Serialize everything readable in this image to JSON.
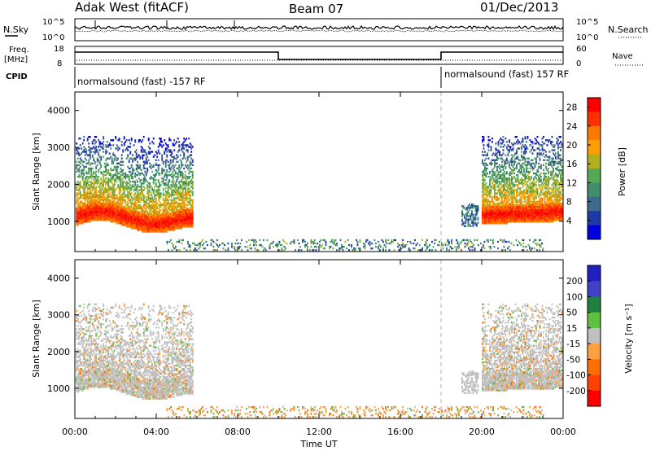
{
  "header": {
    "station": "Adak West (fitACF)",
    "beam": "Beam 07",
    "date": "01/Dec/2013"
  },
  "left_labels": {
    "nsky": "N.Sky",
    "freq": "Freq.",
    "freq_unit": "[MHz]",
    "cpid": "CPID"
  },
  "right_labels": {
    "nsearch": "N.Search",
    "nave": "Nave"
  },
  "noise_panel": {
    "left_ticks": [
      "10^5",
      "10^0"
    ],
    "right_ticks": [
      "10^5",
      "10^0"
    ]
  },
  "freq_panel": {
    "left_ticks": [
      "18",
      "8"
    ],
    "right_ticks": [
      "60",
      "0"
    ]
  },
  "cpid_panel": {
    "segments": [
      {
        "label": "normalsound (fast) -157 RF",
        "start_hour": 0
      },
      {
        "label": "normalsound (fast) 157 RF",
        "start_hour": 18
      }
    ]
  },
  "colors": {
    "background": "#ffffff",
    "axis": "#000000",
    "ground_scatter": "#c0c0c0",
    "boundary": "#b0b0b0"
  },
  "chart_data": [
    {
      "type": "heatmap",
      "name": "power",
      "xlabel": "",
      "ylabel": "Slant Range [km]",
      "x_ticks": [
        "00:00",
        "04:00",
        "08:00",
        "12:00",
        "16:00",
        "20:00",
        "00:00"
      ],
      "x_tick_hours": [
        0,
        4,
        8,
        12,
        16,
        20,
        24
      ],
      "y_ticks": [
        1000,
        2000,
        3000,
        4000
      ],
      "xlim": [
        0,
        24
      ],
      "ylim": [
        180,
        4500
      ],
      "colorbar": {
        "label": "Power [dB]",
        "ticks": [
          "4",
          "8",
          "12",
          "16",
          "20",
          "24",
          "28"
        ],
        "range": [
          0,
          30
        ],
        "colors": [
          "#0000e0",
          "#1d3aa8",
          "#3f6a8e",
          "#3f8f6a",
          "#55a855",
          "#b0b020",
          "#ffa000",
          "#ff7800",
          "#ff3000",
          "#ff0000"
        ]
      },
      "regions": [
        {
          "hour_start": 0.0,
          "hour_end": 5.8,
          "range_low": 700,
          "range_high": 3300,
          "value_peak": 28,
          "value_edge": 4
        },
        {
          "hour_start": 20.0,
          "hour_end": 24.0,
          "range_low": 700,
          "range_high": 3300,
          "value_peak": 28,
          "value_edge": 4
        },
        {
          "hour_start": 19.0,
          "hour_end": 20.0,
          "range_low": 800,
          "range_high": 1500,
          "value_peak": 8,
          "value_edge": 4
        },
        {
          "hour_start": 5.0,
          "hour_end": 22.5,
          "range_low": 180,
          "range_high": 500,
          "value_peak": 14,
          "value_edge": 4
        }
      ]
    },
    {
      "type": "heatmap",
      "name": "velocity",
      "xlabel": "Time UT",
      "ylabel": "Slant Range [km]",
      "x_ticks": [
        "00:00",
        "04:00",
        "08:00",
        "12:00",
        "16:00",
        "20:00",
        "00:00"
      ],
      "x_tick_hours": [
        0,
        4,
        8,
        12,
        16,
        20,
        24
      ],
      "y_ticks": [
        1000,
        2000,
        3000,
        4000
      ],
      "xlim": [
        0,
        24
      ],
      "ylim": [
        180,
        4500
      ],
      "colorbar": {
        "label": "Velocity [m s⁻¹]",
        "ticks": [
          "200",
          "100",
          "50",
          "15",
          "-15",
          "-50",
          "-100",
          "-200"
        ],
        "colors": [
          "#2020c0",
          "#4040c8",
          "#208040",
          "#60c040",
          "#c0c0c0",
          "#ffa040",
          "#ff7000",
          "#ff4000",
          "#ff0000"
        ]
      },
      "regions": [
        {
          "hour_start": 0.0,
          "hour_end": 5.8,
          "range_low": 700,
          "range_high": 3300,
          "dominant": "ground_scatter"
        },
        {
          "hour_start": 20.0,
          "hour_end": 24.0,
          "range_low": 700,
          "range_high": 3300,
          "dominant": "ground_scatter"
        },
        {
          "hour_start": 5.0,
          "hour_end": 22.5,
          "range_low": 180,
          "range_high": 500,
          "dominant": "negative"
        }
      ]
    }
  ]
}
